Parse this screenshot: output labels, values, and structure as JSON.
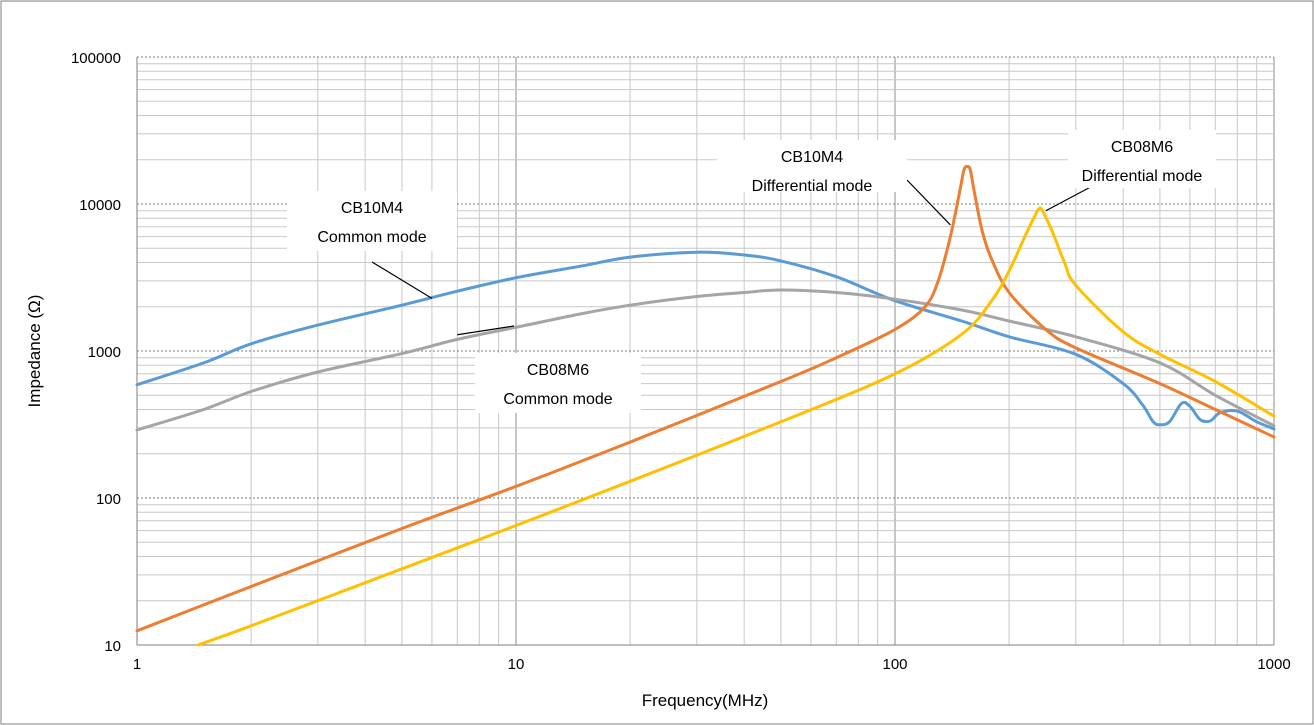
{
  "chart_data": {
    "type": "line",
    "title": "",
    "xlabel": "Frequency(MHz)",
    "ylabel": "Impedance (Ω)",
    "x_scale": "log",
    "y_scale": "log",
    "xlim": [
      1,
      1000
    ],
    "ylim": [
      10,
      100000
    ],
    "grid": true,
    "x_ticks": [
      "1",
      "10",
      "100",
      "1000"
    ],
    "y_ticks": [
      "10",
      "100",
      "1000",
      "10000",
      "100000"
    ],
    "series": [
      {
        "color": "#5b9bd5",
        "points": [
          [
            1,
            590
          ],
          [
            1.5,
            830
          ],
          [
            2,
            1120
          ],
          [
            3,
            1500
          ],
          [
            5,
            2050
          ],
          [
            7,
            2550
          ],
          [
            10,
            3150
          ],
          [
            15,
            3800
          ],
          [
            20,
            4350
          ],
          [
            30,
            4700
          ],
          [
            40,
            4500
          ],
          [
            50,
            4100
          ],
          [
            70,
            3200
          ],
          [
            100,
            2200
          ],
          [
            150,
            1600
          ],
          [
            200,
            1250
          ],
          [
            300,
            950
          ],
          [
            400,
            600
          ],
          [
            450,
            430
          ],
          [
            480,
            330
          ],
          [
            500,
            315
          ],
          [
            530,
            330
          ],
          [
            570,
            440
          ],
          [
            600,
            420
          ],
          [
            640,
            340
          ],
          [
            680,
            335
          ],
          [
            720,
            380
          ],
          [
            800,
            390
          ],
          [
            900,
            330
          ],
          [
            1000,
            295
          ]
        ]
      },
      {
        "color": "#a5a5a5",
        "points": [
          [
            1,
            290
          ],
          [
            1.5,
            400
          ],
          [
            2,
            530
          ],
          [
            3,
            720
          ],
          [
            5,
            960
          ],
          [
            7,
            1200
          ],
          [
            10,
            1450
          ],
          [
            15,
            1800
          ],
          [
            20,
            2050
          ],
          [
            30,
            2350
          ],
          [
            40,
            2500
          ],
          [
            50,
            2600
          ],
          [
            70,
            2500
          ],
          [
            100,
            2250
          ],
          [
            150,
            1900
          ],
          [
            200,
            1600
          ],
          [
            300,
            1250
          ],
          [
            500,
            830
          ],
          [
            700,
            500
          ],
          [
            1000,
            310
          ]
        ]
      },
      {
        "color": "#ed7d31",
        "points": [
          [
            1,
            12.5
          ],
          [
            2,
            25
          ],
          [
            5,
            62
          ],
          [
            10,
            120
          ],
          [
            20,
            240
          ],
          [
            50,
            620
          ],
          [
            70,
            900
          ],
          [
            100,
            1400
          ],
          [
            120,
            2000
          ],
          [
            130,
            3000
          ],
          [
            140,
            6000
          ],
          [
            148,
            12000
          ],
          [
            152,
            17000
          ],
          [
            155,
            18000
          ],
          [
            158,
            17000
          ],
          [
            162,
            12000
          ],
          [
            170,
            6500
          ],
          [
            180,
            4200
          ],
          [
            200,
            2500
          ],
          [
            250,
            1400
          ],
          [
            300,
            1050
          ],
          [
            500,
            600
          ],
          [
            700,
            400
          ],
          [
            1000,
            260
          ]
        ]
      },
      {
        "color": "#ffc000",
        "points": [
          [
            1.45,
            10
          ],
          [
            2,
            13.5
          ],
          [
            5,
            33
          ],
          [
            10,
            65
          ],
          [
            20,
            130
          ],
          [
            50,
            330
          ],
          [
            100,
            700
          ],
          [
            150,
            1300
          ],
          [
            180,
            2200
          ],
          [
            200,
            3500
          ],
          [
            220,
            6000
          ],
          [
            235,
            8500
          ],
          [
            240,
            9300
          ],
          [
            245,
            9000
          ],
          [
            260,
            6500
          ],
          [
            280,
            4000
          ],
          [
            300,
            2800
          ],
          [
            400,
            1350
          ],
          [
            500,
            950
          ],
          [
            700,
            620
          ],
          [
            1000,
            360
          ]
        ]
      }
    ],
    "annotations": [
      {
        "lines": [
          "CB10M4",
          "Common mode"
        ],
        "target": [
          6,
          2280
        ]
      },
      {
        "lines": [
          "CB08M6",
          "Common mode"
        ],
        "target": [
          7,
          1290
        ]
      },
      {
        "lines": [
          "CB10M4",
          "Differential mode"
        ],
        "target": [
          140,
          7200
        ]
      },
      {
        "lines": [
          "CB08M6",
          "Differential mode"
        ],
        "target": [
          250,
          9000
        ]
      }
    ]
  }
}
